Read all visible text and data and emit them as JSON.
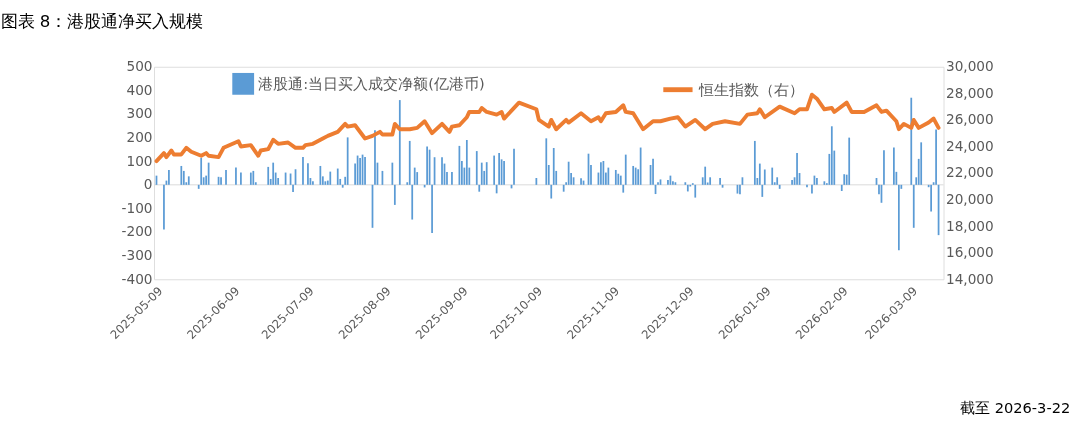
{
  "chart_data": {
    "type": "bar",
    "title": "图表 8：港股通净买入规模",
    "annotations": [
      "截至 2026-3-22"
    ],
    "legend": "top",
    "xlim": [
      "2025-05-08",
      "2026-03-22"
    ],
    "xticks": [
      "2025-05-09",
      "2025-06-09",
      "2025-07-09",
      "2025-08-09",
      "2025-09-09",
      "2025-10-09",
      "2025-11-09",
      "2025-12-09",
      "2026-01-09",
      "2026-02-09",
      "2026-03-09"
    ],
    "ylim": [
      -400,
      500
    ],
    "yticks": [
      -400,
      -300,
      -200,
      -100,
      0,
      100,
      200,
      300,
      400,
      500
    ],
    "y2lim": [
      14000,
      30000
    ],
    "y2ticks": [
      {
        "value": 14000,
        "label": "14,000"
      },
      {
        "value": 16000,
        "label": "16,000"
      },
      {
        "value": 18000,
        "label": "18,000"
      },
      {
        "value": 20000,
        "label": "20,000"
      },
      {
        "value": 22000,
        "label": "22,000"
      },
      {
        "value": 24000,
        "label": "24,000"
      },
      {
        "value": 26000,
        "label": "26,000"
      },
      {
        "value": 28000,
        "label": "28,000"
      },
      {
        "value": 30000,
        "label": "30,000"
      }
    ],
    "series": [
      {
        "name": "港股通:当日买入成交净额(亿港币)",
        "type": "bar",
        "color": "#5b9bd5",
        "x": [
          "2025-05-09",
          "2025-05-12",
          "2025-05-13",
          "2025-05-14",
          "2025-05-19",
          "2025-05-20",
          "2025-05-21",
          "2025-05-22",
          "2025-05-26",
          "2025-05-27",
          "2025-05-28",
          "2025-05-29",
          "2025-05-30",
          "2025-06-03",
          "2025-06-04",
          "2025-06-06",
          "2025-06-10",
          "2025-06-12",
          "2025-06-16",
          "2025-06-17",
          "2025-06-18",
          "2025-06-23",
          "2025-06-24",
          "2025-06-25",
          "2025-06-26",
          "2025-06-27",
          "2025-06-30",
          "2025-07-02",
          "2025-07-03",
          "2025-07-04",
          "2025-07-07",
          "2025-07-09",
          "2025-07-10",
          "2025-07-11",
          "2025-07-14",
          "2025-07-15",
          "2025-07-16",
          "2025-07-17",
          "2025-07-18",
          "2025-07-21",
          "2025-07-22",
          "2025-07-23",
          "2025-07-24",
          "2025-07-25",
          "2025-07-28",
          "2025-07-29",
          "2025-07-30",
          "2025-07-31",
          "2025-08-01",
          "2025-08-04",
          "2025-08-05",
          "2025-08-06",
          "2025-08-08",
          "2025-08-12",
          "2025-08-13",
          "2025-08-15",
          "2025-08-18",
          "2025-08-19",
          "2025-08-20",
          "2025-08-21",
          "2025-08-22",
          "2025-08-25",
          "2025-08-26",
          "2025-08-27",
          "2025-08-28",
          "2025-08-29",
          "2025-09-01",
          "2025-09-02",
          "2025-09-03",
          "2025-09-05",
          "2025-09-08",
          "2025-09-09",
          "2025-09-10",
          "2025-09-11",
          "2025-09-12",
          "2025-09-15",
          "2025-09-16",
          "2025-09-17",
          "2025-09-18",
          "2025-09-19",
          "2025-09-22",
          "2025-09-23",
          "2025-09-24",
          "2025-09-25",
          "2025-09-26",
          "2025-09-29",
          "2025-09-30",
          "2025-10-09",
          "2025-10-13",
          "2025-10-14",
          "2025-10-15",
          "2025-10-16",
          "2025-10-17",
          "2025-10-20",
          "2025-10-21",
          "2025-10-22",
          "2025-10-23",
          "2025-10-24",
          "2025-10-27",
          "2025-10-28",
          "2025-10-30",
          "2025-10-31",
          "2025-11-03",
          "2025-11-04",
          "2025-11-05",
          "2025-11-06",
          "2025-11-07",
          "2025-11-10",
          "2025-11-11",
          "2025-11-12",
          "2025-11-13",
          "2025-11-14",
          "2025-11-17",
          "2025-11-18",
          "2025-11-19",
          "2025-11-20",
          "2025-11-24",
          "2025-11-25",
          "2025-11-26",
          "2025-11-27",
          "2025-11-28",
          "2025-12-01",
          "2025-12-02",
          "2025-12-03",
          "2025-12-04",
          "2025-12-08",
          "2025-12-09",
          "2025-12-10",
          "2025-12-11",
          "2025-12-12",
          "2025-12-15",
          "2025-12-16",
          "2025-12-17",
          "2025-12-18",
          "2025-12-22",
          "2025-12-23",
          "2025-12-29",
          "2025-12-30",
          "2025-12-31",
          "2026-01-05",
          "2026-01-06",
          "2026-01-07",
          "2026-01-08",
          "2026-01-09",
          "2026-01-12",
          "2026-01-13",
          "2026-01-14",
          "2026-01-15",
          "2026-01-20",
          "2026-01-21",
          "2026-01-22",
          "2026-01-23",
          "2026-01-26",
          "2026-01-28",
          "2026-01-29",
          "2026-01-30",
          "2026-02-02",
          "2026-02-03",
          "2026-02-04",
          "2026-02-05",
          "2026-02-06",
          "2026-02-09",
          "2026-02-10",
          "2026-02-11",
          "2026-02-12",
          "2026-02-23",
          "2026-02-24",
          "2026-02-25",
          "2026-02-26",
          "2026-03-02",
          "2026-03-03",
          "2026-03-04",
          "2026-03-05",
          "2026-03-09",
          "2026-03-10",
          "2026-03-11",
          "2026-03-12",
          "2026-03-13",
          "2026-03-16",
          "2026-03-17",
          "2026-03-18",
          "2026-03-19",
          "2026-03-20"
        ],
        "values": [
          39,
          -189,
          18,
          63,
          80,
          59,
          11,
          36,
          -17,
          114,
          32,
          39,
          94,
          34,
          32,
          63,
          73,
          52,
          52,
          59,
          11,
          76,
          25,
          94,
          52,
          29,
          52,
          48,
          -30,
          66,
          118,
          91,
          29,
          15,
          80,
          36,
          15,
          18,
          56,
          69,
          25,
          -12,
          34,
          201,
          90,
          124,
          114,
          128,
          118,
          -182,
          231,
          94,
          59,
          94,
          -85,
          359,
          11,
          186,
          -147,
          73,
          54,
          -11,
          162,
          149,
          -204,
          117,
          117,
          90,
          54,
          54,
          165,
          101,
          73,
          190,
          73,
          143,
          -29,
          94,
          59,
          96,
          124,
          -36,
          135,
          108,
          101,
          -15,
          153,
          29,
          197,
          84,
          -58,
          156,
          59,
          -29,
          11,
          98,
          50,
          32,
          28,
          18,
          132,
          84,
          52,
          96,
          101,
          52,
          73,
          63,
          47,
          39,
          -33,
          128,
          80,
          73,
          66,
          158,
          84,
          110,
          -39,
          11,
          23,
          21,
          39,
          15,
          11,
          11,
          -28,
          -7,
          7,
          -54,
          32,
          77,
          10,
          32,
          29,
          -12,
          -37,
          -40,
          32,
          186,
          29,
          90,
          -51,
          65,
          73,
          11,
          32,
          -17,
          21,
          32,
          135,
          50,
          -10,
          -37,
          39,
          29,
          15,
          7,
          131,
          248,
          145,
          -26,
          45,
          43,
          200,
          29,
          -40,
          -76,
          147,
          158,
          55,
          -277,
          -17,
          369,
          -182,
          32,
          110,
          180,
          -10,
          -113,
          11,
          234,
          -213
        ]
      },
      {
        "name": "恒生指数（右）",
        "type": "line",
        "axis": "y2",
        "color": "#ed7d31",
        "x": [
          "2025-05-09",
          "2025-05-12",
          "2025-05-13",
          "2025-05-15",
          "2025-05-16",
          "2025-05-19",
          "2025-05-21",
          "2025-05-23",
          "2025-05-27",
          "2025-05-29",
          "2025-05-30",
          "2025-06-03",
          "2025-06-05",
          "2025-06-11",
          "2025-06-12",
          "2025-06-16",
          "2025-06-19",
          "2025-06-20",
          "2025-06-23",
          "2025-06-25",
          "2025-06-27",
          "2025-07-01",
          "2025-07-04",
          "2025-07-07",
          "2025-07-08",
          "2025-07-11",
          "2025-07-15",
          "2025-07-17",
          "2025-07-21",
          "2025-07-24",
          "2025-07-25",
          "2025-07-28",
          "2025-08-01",
          "2025-08-04",
          "2025-08-07",
          "2025-08-08",
          "2025-08-12",
          "2025-08-13",
          "2025-08-15",
          "2025-08-19",
          "2025-08-22",
          "2025-08-25",
          "2025-08-28",
          "2025-09-01",
          "2025-09-04",
          "2025-09-05",
          "2025-09-08",
          "2025-09-11",
          "2025-09-12",
          "2025-09-16",
          "2025-09-17",
          "2025-09-19",
          "2025-09-23",
          "2025-09-25",
          "2025-09-26",
          "2025-10-02",
          "2025-10-09",
          "2025-10-10",
          "2025-10-14",
          "2025-10-15",
          "2025-10-17",
          "2025-10-21",
          "2025-10-22",
          "2025-10-27",
          "2025-10-31",
          "2025-11-03",
          "2025-11-04",
          "2025-11-06",
          "2025-11-10",
          "2025-11-13",
          "2025-11-14",
          "2025-11-17",
          "2025-11-21",
          "2025-11-25",
          "2025-11-28",
          "2025-12-02",
          "2025-12-05",
          "2025-12-08",
          "2025-12-12",
          "2025-12-16",
          "2025-12-19",
          "2025-12-24",
          "2025-12-30",
          "2026-01-02",
          "2026-01-06",
          "2026-01-07",
          "2026-01-09",
          "2026-01-15",
          "2026-01-21",
          "2026-01-23",
          "2026-01-26",
          "2026-01-28",
          "2026-01-30",
          "2026-02-02",
          "2026-02-05",
          "2026-02-06",
          "2026-02-11",
          "2026-02-13",
          "2026-02-18",
          "2026-02-23",
          "2026-02-25",
          "2026-02-27",
          "2026-03-03",
          "2026-03-04",
          "2026-03-06",
          "2026-03-09",
          "2026-03-10",
          "2026-03-12",
          "2026-03-16",
          "2026-03-18",
          "2026-03-20"
        ],
        "values": [
          22900,
          23500,
          23200,
          23700,
          23400,
          23400,
          23900,
          23600,
          23300,
          23500,
          23300,
          23200,
          23900,
          24400,
          24000,
          24100,
          23300,
          23700,
          23800,
          24500,
          24200,
          24300,
          23900,
          23900,
          24100,
          24200,
          24600,
          24800,
          25100,
          25700,
          25500,
          25600,
          24600,
          24800,
          25100,
          24900,
          24900,
          25700,
          25300,
          25300,
          25400,
          25900,
          25000,
          25700,
          25100,
          25500,
          25600,
          26200,
          26600,
          26600,
          26900,
          26600,
          26400,
          26600,
          26100,
          27300,
          26800,
          26000,
          25500,
          26000,
          25300,
          26000,
          25800,
          26500,
          25900,
          26200,
          25900,
          26500,
          26600,
          27100,
          26600,
          26500,
          25300,
          25900,
          25900,
          26100,
          26200,
          25500,
          26000,
          25300,
          25700,
          25900,
          25700,
          26400,
          26500,
          26800,
          26200,
          27000,
          26500,
          26800,
          26800,
          27900,
          27600,
          26800,
          26900,
          26600,
          27300,
          26600,
          26600,
          27100,
          26600,
          26700,
          25900,
          25300,
          25700,
          25400,
          26000,
          25400,
          25800,
          26100,
          25400
        ]
      }
    ]
  }
}
